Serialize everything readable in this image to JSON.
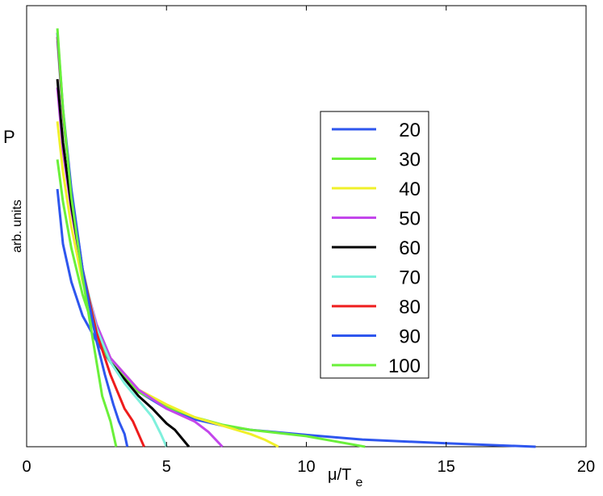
{
  "chart_data": {
    "type": "line",
    "title": "",
    "xlabel": "μ/T",
    "xlabel_sub": "e",
    "ylabel": "P",
    "ylabel_sub": "arb. units",
    "xlim": [
      0,
      20
    ],
    "ylim": [
      0,
      1
    ],
    "xticks": [
      0,
      5,
      10,
      15,
      20
    ],
    "grid": false,
    "legend_position": "center-right",
    "series": [
      {
        "name": "20",
        "color": "#2e56ee",
        "x": [
          1.1,
          1.3,
          1.6,
          2.0,
          2.5,
          3.0,
          4.0,
          5.0,
          6.0,
          7.0,
          8.0,
          10.0,
          12.0,
          15.0,
          18.2
        ],
        "y": [
          0.61,
          0.48,
          0.39,
          0.31,
          0.25,
          0.2,
          0.13,
          0.09,
          0.065,
          0.05,
          0.04,
          0.028,
          0.017,
          0.008,
          0.0
        ]
      },
      {
        "name": "30",
        "color": "#6af03a",
        "x": [
          1.1,
          1.3,
          1.6,
          2.0,
          2.5,
          3.0,
          4.0,
          5.0,
          6.0,
          7.0,
          8.0,
          10.0,
          11.0,
          12.1
        ],
        "y": [
          0.68,
          0.58,
          0.47,
          0.36,
          0.26,
          0.2,
          0.13,
          0.095,
          0.07,
          0.052,
          0.04,
          0.025,
          0.013,
          0.0
        ]
      },
      {
        "name": "40",
        "color": "#f0f02a",
        "x": [
          1.1,
          1.3,
          1.6,
          2.0,
          2.5,
          3.0,
          4.0,
          5.0,
          6.0,
          7.0,
          8.0,
          8.5,
          9.0
        ],
        "y": [
          0.77,
          0.65,
          0.52,
          0.39,
          0.28,
          0.21,
          0.135,
          0.1,
          0.07,
          0.05,
          0.03,
          0.017,
          0.0
        ]
      },
      {
        "name": "50",
        "color": "#c346eb",
        "x": [
          1.1,
          1.3,
          1.6,
          2.0,
          2.5,
          3.0,
          4.0,
          5.0,
          5.5,
          6.0,
          6.5,
          7.0
        ],
        "y": [
          0.85,
          0.7,
          0.56,
          0.41,
          0.29,
          0.21,
          0.135,
          0.09,
          0.075,
          0.06,
          0.035,
          0.0
        ]
      },
      {
        "name": "60",
        "color": "#000000",
        "x": [
          1.1,
          1.3,
          1.6,
          2.0,
          2.5,
          3.0,
          3.5,
          4.0,
          4.5,
          5.0,
          5.3,
          5.8
        ],
        "y": [
          0.87,
          0.72,
          0.57,
          0.41,
          0.28,
          0.2,
          0.16,
          0.12,
          0.09,
          0.055,
          0.04,
          0.0
        ]
      },
      {
        "name": "70",
        "color": "#7ff0dc",
        "x": [
          1.1,
          1.3,
          1.6,
          2.0,
          2.5,
          3.0,
          3.5,
          4.0,
          4.5,
          4.8,
          5.0
        ],
        "y": [
          0.96,
          0.78,
          0.6,
          0.42,
          0.28,
          0.2,
          0.15,
          0.11,
          0.07,
          0.03,
          0.0
        ]
      },
      {
        "name": "80",
        "color": "#ee1c1c",
        "x": [
          1.1,
          1.3,
          1.6,
          2.0,
          2.5,
          3.0,
          3.5,
          3.8,
          4.0,
          4.2
        ],
        "y": [
          0.97,
          0.79,
          0.6,
          0.42,
          0.27,
          0.17,
          0.09,
          0.06,
          0.03,
          0.0
        ]
      },
      {
        "name": "90",
        "color": "#2e56ee",
        "x": [
          1.1,
          1.3,
          1.6,
          2.0,
          2.5,
          2.8,
          3.1,
          3.3,
          3.5,
          3.6
        ],
        "y": [
          0.98,
          0.8,
          0.61,
          0.42,
          0.25,
          0.17,
          0.1,
          0.06,
          0.03,
          0.0
        ]
      },
      {
        "name": "100",
        "color": "#6af03a",
        "x": [
          1.1,
          1.3,
          1.6,
          2.0,
          2.4,
          2.7,
          2.9,
          3.0,
          3.1,
          3.2
        ],
        "y": [
          0.99,
          0.8,
          0.59,
          0.4,
          0.24,
          0.12,
          0.08,
          0.06,
          0.03,
          0.0
        ]
      }
    ]
  }
}
